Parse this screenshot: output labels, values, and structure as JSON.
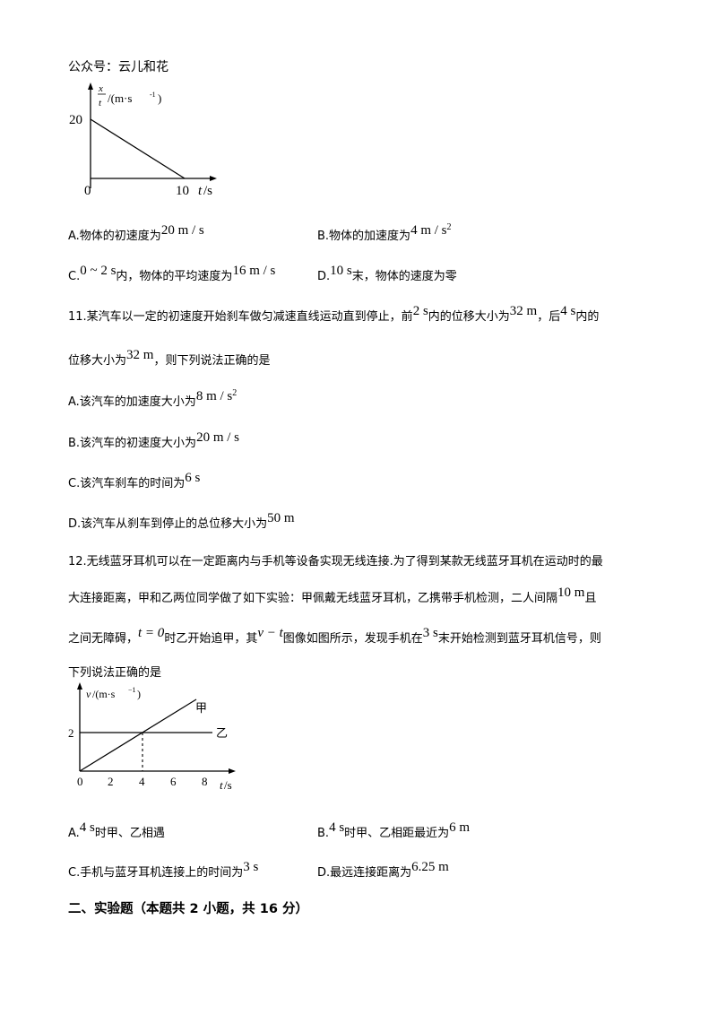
{
  "header": "公众号：云儿和花",
  "graph1": {
    "y_label_num": "x",
    "y_label_den": "t",
    "y_label_unit": "/(m·s",
    "y_label_exp": "-1",
    "y_label_close": ")",
    "y_tick": "20",
    "origin": "0",
    "x_tick": "10",
    "x_label": "t",
    "x_unit": "/s"
  },
  "q10": {
    "a": {
      "text": "A.物体的初速度为",
      "value": "20 m / s"
    },
    "b": {
      "text": "B.物体的加速度为",
      "value": "4 m / s",
      "sup": "2"
    },
    "c": {
      "prefix": "C.",
      "value": "0 ~ 2 s",
      "text": "内，物体的平均速度为",
      "value2": "16 m / s"
    },
    "d": {
      "prefix": "D.",
      "value": "10 s",
      "text": "末，物体的速度为零"
    }
  },
  "q11": {
    "line1_a": "11.某汽车以一定的初速度开始刹车做匀减速直线运动直到停止，前",
    "v1": "2 s",
    "line1_b": "内的位移大小为",
    "v2": "32 m",
    "line1_c": "，后",
    "v3": "4 s",
    "line1_d": "内的",
    "line2_a": "位移大小为",
    "v4": "32 m",
    "line2_b": "，则下列说法正确的是",
    "a": {
      "text": "A.该汽车的加速度大小为",
      "value": "8 m / s",
      "sup": "2"
    },
    "b": {
      "text": "B.该汽车的初速度大小为",
      "value": "20 m / s"
    },
    "c": {
      "text": "C.该汽车刹车的时间为",
      "value": "6 s"
    },
    "d": {
      "text": "D.该汽车从刹车到停止的总位移大小为",
      "value": "50 m"
    }
  },
  "q12": {
    "line1": "12.无线蓝牙耳机可以在一定距离内与手机等设备实现无线连接.为了得到某款无线蓝牙耳机在运动时的最",
    "line2_a": "大连接距离，甲和乙两位同学做了如下实验：甲佩戴无线蓝牙耳机，乙携带手机检测，二人间隔",
    "v1": "10 m",
    "line2_b": "且",
    "line3_a": "之间无障碍，",
    "v2": "t = 0",
    "line3_b": "时乙开始追甲，其",
    "v3": "v − t",
    "line3_c": "图像如图所示，发现手机在",
    "v4": "3 s",
    "line3_d": "末开始检测到蓝牙耳机信号，则",
    "line4": "下列说法正确的是",
    "a": {
      "prefix": "A.",
      "value": "4 s",
      "text": "时甲、乙相遇"
    },
    "b": {
      "prefix": "B.",
      "value": "4 s",
      "text": "时甲、乙相距最近为",
      "value2": "6 m"
    },
    "c": {
      "text": "C.手机与蓝牙耳机连接上的时间为",
      "value": "3 s"
    },
    "d": {
      "text": "D.最远连接距离为",
      "value": "6.25 m"
    }
  },
  "graph2": {
    "y_label": "v",
    "y_unit": "/(m·s",
    "y_exp": "−1",
    "y_close": ")",
    "label_jia": "甲",
    "label_yi": "乙",
    "y_tick": "2",
    "x_ticks": [
      "0",
      "2",
      "4",
      "6",
      "8"
    ],
    "x_label": "t",
    "x_unit": "/s"
  },
  "section2": "二、实验题（本题共 2 小题，共 16 分）"
}
